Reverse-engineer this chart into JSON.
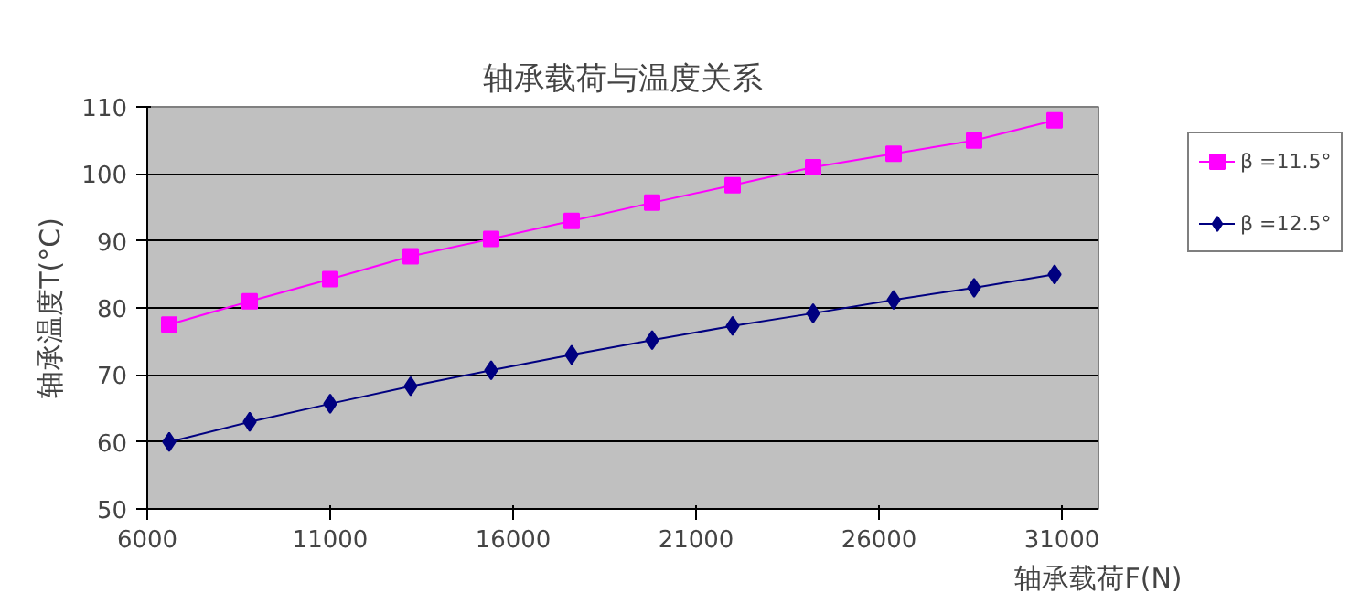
{
  "chart_data": {
    "type": "line",
    "title": "轴承载荷与温度关系",
    "xlabel": "轴承载荷F(N)",
    "ylabel": "轴承温度T(°C)",
    "x": [
      6600,
      8800,
      11000,
      13200,
      15400,
      17600,
      19800,
      22000,
      24200,
      26400,
      28600,
      30800
    ],
    "series": [
      {
        "name": "β =11.5°",
        "color": "#ff00ff",
        "marker": "square",
        "values": [
          77.5,
          81,
          84.3,
          87.7,
          90.3,
          93,
          95.7,
          98.3,
          101,
          103,
          105,
          108
        ]
      },
      {
        "name": "β =12.5°",
        "color": "#000080",
        "marker": "diamond",
        "values": [
          60,
          63,
          65.7,
          68.3,
          70.7,
          73,
          75.2,
          77.3,
          79.2,
          81.2,
          83,
          85
        ]
      }
    ],
    "xlim": [
      6000,
      32000
    ],
    "xticks": [
      6000,
      11000,
      16000,
      21000,
      26000,
      31000
    ],
    "ylim": [
      50,
      110
    ],
    "yticks": [
      50,
      60,
      70,
      80,
      90,
      100,
      110
    ],
    "grid": "y",
    "legend": "right",
    "line_style": "solid"
  }
}
